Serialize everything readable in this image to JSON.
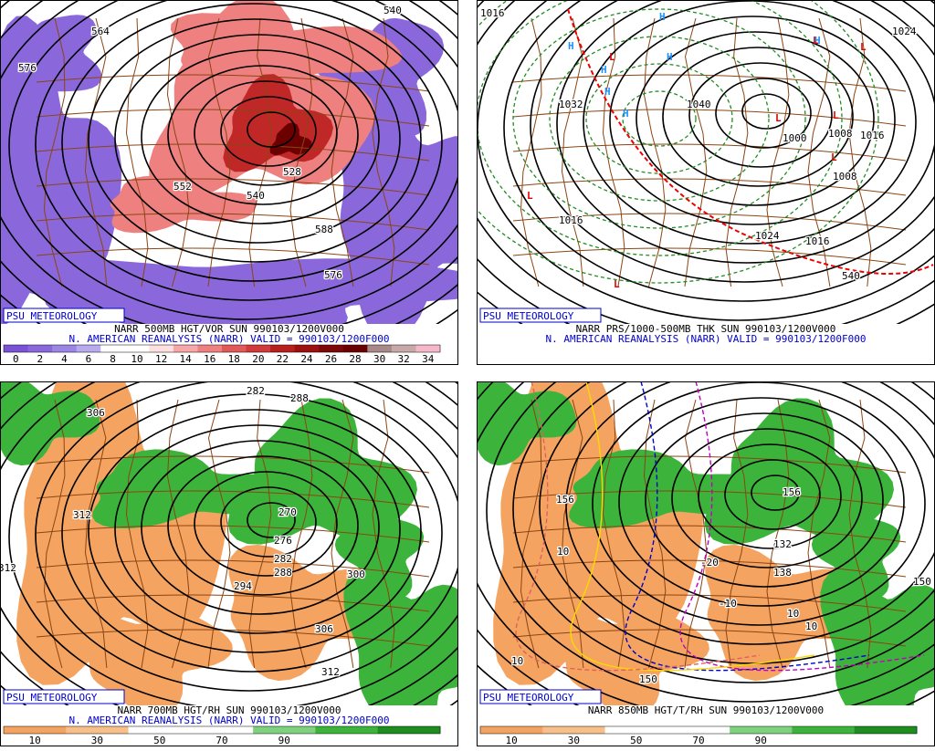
{
  "panels": [
    {
      "badge": "PSU METEOROLOGY",
      "title": "NARR 500MB HGT/VOR SUN 990103/1200V000",
      "subtitle": "N. AMERICAN REANALYSIS (NARR) VALID = 990103/1200F000",
      "colorbar": {
        "colors": [
          "#7a52d6",
          "#8a68dc",
          "#9c86e4",
          "#b8aaec",
          "#ffffff",
          "#ffffff",
          "#ffe0e0",
          "#f6a8a8",
          "#ee8080",
          "#e05a5a",
          "#d03a3a",
          "#b82020",
          "#9c1010",
          "#7e0808",
          "#6a0000",
          "#a88888",
          "#c8a8a8",
          "#f4b8c8"
        ],
        "labels": [
          "0",
          "2",
          "4",
          "6",
          "8",
          "10",
          "12",
          "14",
          "16",
          "18",
          "20",
          "22",
          "24",
          "26",
          "28",
          "30",
          "32",
          "34"
        ]
      },
      "contour_labels": [
        "564",
        "576",
        "552",
        "528",
        "540",
        "576",
        "588",
        "540"
      ]
    },
    {
      "badge": "PSU METEOROLOGY",
      "title": "NARR PRS/1000-500MB THK SUN 990103/1200V000",
      "subtitle": "N. AMERICAN REANALYSIS (NARR) VALID = 990103/1200F000",
      "contour_labels": [
        "1016",
        "1024",
        "1040",
        "1032",
        "1000",
        "1008",
        "1016",
        "1024",
        "1016",
        "1008",
        "1016",
        "540"
      ],
      "pressure_centers": [
        "H",
        "H",
        "H",
        "H",
        "H",
        "H",
        "H",
        "L",
        "L",
        "L",
        "L",
        "L",
        "L",
        "L",
        "L"
      ]
    },
    {
      "badge": "PSU METEOROLOGY",
      "title": "NARR 700MB HGT/RH SUN 990103/1200V000",
      "subtitle": "N. AMERICAN REANALYSIS (NARR) VALID = 990103/1200F000",
      "colorbar": {
        "colors": [
          "#f4a460",
          "#f7c08a",
          "#ffffff",
          "#ffffff",
          "#7fd07f",
          "#3cb43c",
          "#1e8c1e"
        ],
        "labels": [
          "10",
          "30",
          "50",
          "70",
          "90"
        ]
      },
      "contour_labels": [
        "282",
        "288",
        "306",
        "312",
        "312",
        "270",
        "276",
        "282",
        "288",
        "294",
        "300",
        "306",
        "312"
      ]
    },
    {
      "badge": "PSU METEOROLOGY",
      "title": "NARR 850MB HGT/T/RH SUN 990103/1200V000",
      "colorbar": {
        "colors": [
          "#f4a460",
          "#f7c08a",
          "#ffffff",
          "#ffffff",
          "#7fd07f",
          "#3cb43c",
          "#1e8c1e"
        ],
        "labels": [
          "10",
          "30",
          "50",
          "70",
          "90"
        ]
      },
      "contour_labels": [
        "156",
        "150",
        "132",
        "138",
        "156",
        "150",
        "-20",
        "-10",
        "10",
        "10",
        "10",
        "10"
      ]
    }
  ]
}
